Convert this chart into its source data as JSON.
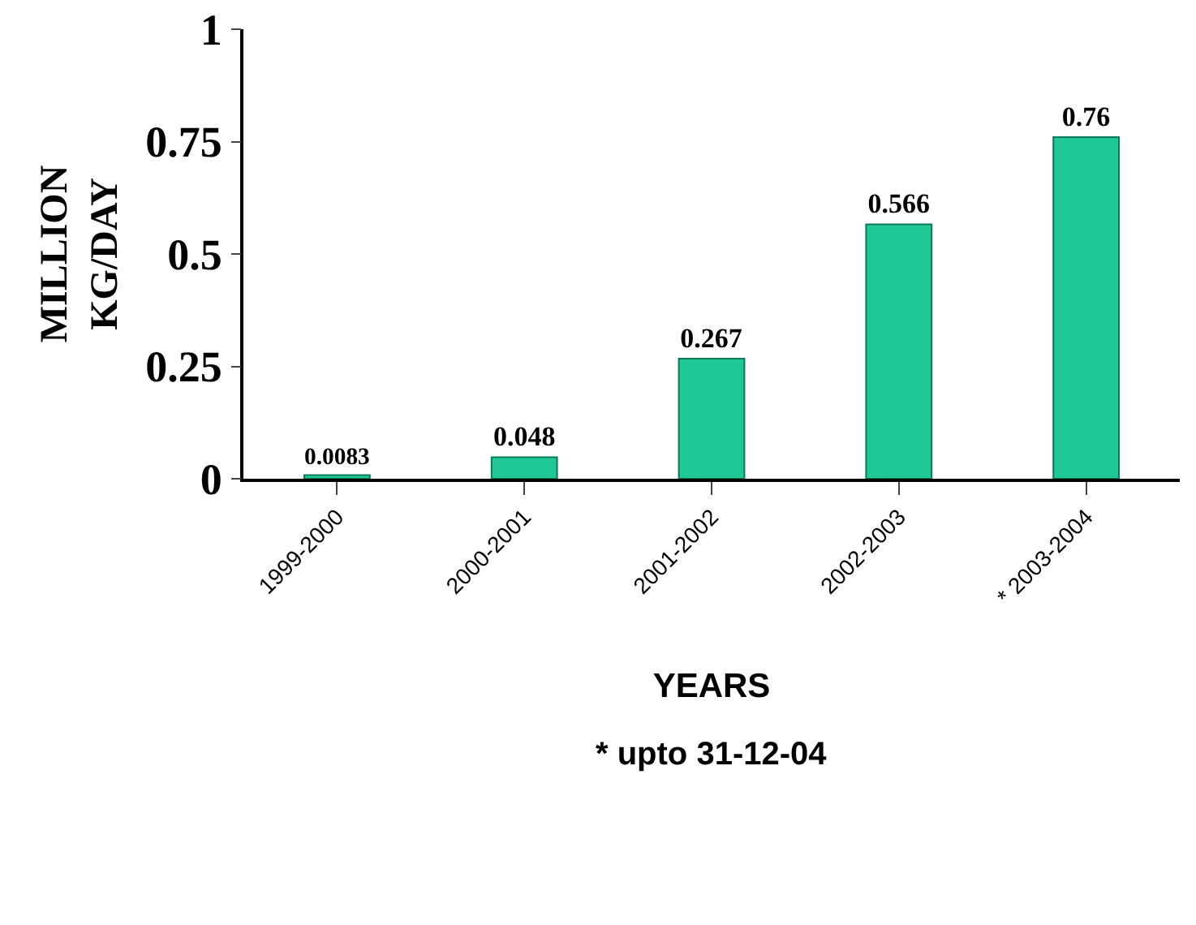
{
  "chart_data": {
    "type": "bar",
    "categories": [
      "1999-2000",
      "2000-2001",
      "2001-2002",
      "2002-2003",
      "* 2003-2004"
    ],
    "values": [
      0.0083,
      0.048,
      0.267,
      0.566,
      0.76
    ],
    "color": "#20c896",
    "ylim": [
      0,
      1
    ],
    "yticks": [
      0,
      0.25,
      0.5,
      0.75,
      1
    ],
    "ylabel": "MILLION\nKG/DAY",
    "xlabel": "YEARS",
    "annotations": [
      "* upto 31-12-04"
    ],
    "data_labels": true
  }
}
